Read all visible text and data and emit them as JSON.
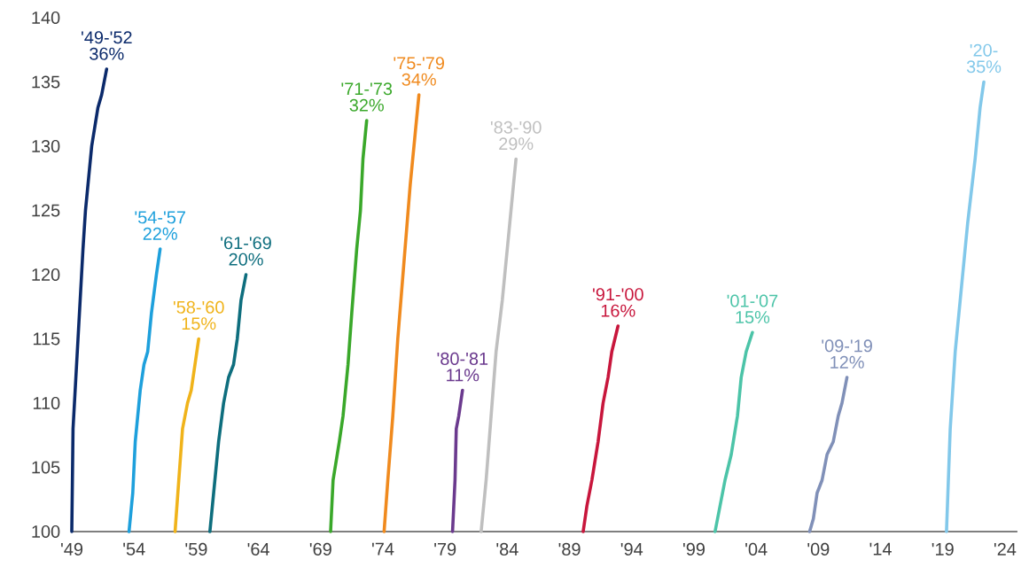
{
  "chart_data": {
    "type": "line",
    "xlim": [
      1949,
      2025
    ],
    "ylim": [
      100,
      140
    ],
    "xticks": [
      {
        "value": 1949,
        "label": "'49"
      },
      {
        "value": 1954,
        "label": "'54"
      },
      {
        "value": 1959,
        "label": "'59"
      },
      {
        "value": 1964,
        "label": "'64"
      },
      {
        "value": 1969,
        "label": "'69"
      },
      {
        "value": 1974,
        "label": "'74"
      },
      {
        "value": 1979,
        "label": "'79"
      },
      {
        "value": 1984,
        "label": "'84"
      },
      {
        "value": 1989,
        "label": "'89"
      },
      {
        "value": 1994,
        "label": "'94"
      },
      {
        "value": 1999,
        "label": "'99"
      },
      {
        "value": 2004,
        "label": "'04"
      },
      {
        "value": 2009,
        "label": "'09"
      },
      {
        "value": 2014,
        "label": "'14"
      },
      {
        "value": 2019,
        "label": "'19"
      },
      {
        "value": 2024,
        "label": "'24"
      }
    ],
    "yticks": [
      100,
      105,
      110,
      115,
      120,
      125,
      130,
      135,
      140
    ],
    "grid": false,
    "legend": false,
    "marker": "none",
    "line_style": "solid",
    "series": [
      {
        "name": "'49-'52",
        "color": "#0b2a6b",
        "x": [
          1949.0,
          1949.1,
          1949.5,
          1949.9,
          1950.1,
          1950.6,
          1951.1,
          1951.4,
          1951.8
        ],
        "values": [
          100,
          108,
          115,
          122,
          125,
          130,
          133,
          134,
          136
        ]
      },
      {
        "name": "'54-'57",
        "color": "#1ea0dc",
        "x": [
          1953.6,
          1953.9,
          1954.1,
          1954.5,
          1954.8,
          1955.1,
          1955.4,
          1955.8,
          1956.1
        ],
        "values": [
          100,
          103,
          107,
          111,
          113,
          114,
          117,
          120,
          122
        ]
      },
      {
        "name": "'58-'60",
        "color": "#f0b31a",
        "x": [
          1957.3,
          1957.6,
          1957.9,
          1958.3,
          1958.6,
          1958.9,
          1959.2
        ],
        "values": [
          100,
          104,
          108,
          110,
          111,
          113,
          115
        ]
      },
      {
        "name": "'61-'69",
        "color": "#0e6e7e",
        "x": [
          1960.1,
          1960.4,
          1960.8,
          1961.2,
          1961.6,
          1962.0,
          1962.3,
          1962.6,
          1963.0
        ],
        "values": [
          100,
          103,
          107,
          110,
          112,
          113,
          115,
          118,
          120
        ]
      },
      {
        "name": "'71-'73",
        "color": "#3aa82a",
        "x": [
          1969.8,
          1970.0,
          1970.5,
          1970.8,
          1971.2,
          1971.5,
          1971.9,
          1972.2,
          1972.4,
          1972.7
        ],
        "values": [
          100,
          104,
          107,
          109,
          113,
          117,
          122,
          125,
          129,
          132
        ]
      },
      {
        "name": "'75-'79",
        "color": "#f08a1e",
        "x": [
          1974.1,
          1974.4,
          1974.8,
          1975.2,
          1975.7,
          1976.2,
          1976.6,
          1976.9
        ],
        "values": [
          100,
          104,
          109,
          115,
          121,
          127,
          131,
          134
        ]
      },
      {
        "name": "'80-'81",
        "color": "#6b3a8e",
        "x": [
          1979.6,
          1979.8,
          1979.9,
          1980.1,
          1980.4
        ],
        "values": [
          100,
          104,
          108,
          109,
          111
        ]
      },
      {
        "name": "'83-'90",
        "color": "#bfbfbf",
        "x": [
          1981.9,
          1982.3,
          1982.7,
          1983.1,
          1983.6,
          1984.1,
          1984.7
        ],
        "values": [
          100,
          104,
          109,
          114,
          118,
          123,
          129
        ]
      },
      {
        "name": "'91-'00",
        "color": "#c8163c",
        "x": [
          1990.1,
          1990.4,
          1990.8,
          1991.3,
          1991.7,
          1992.1,
          1992.4,
          1992.9
        ],
        "values": [
          100,
          102,
          104,
          107,
          110,
          112,
          114,
          116
        ]
      },
      {
        "name": "'01-'07",
        "color": "#4cc4a8",
        "x": [
          2000.7,
          2001.1,
          2001.5,
          2002.0,
          2002.5,
          2002.8,
          2003.2,
          2003.7
        ],
        "values": [
          100,
          102,
          104,
          106,
          109,
          112,
          114,
          115.5
        ]
      },
      {
        "name": "'09-'19",
        "color": "#8090b8",
        "x": [
          2008.3,
          2008.6,
          2008.9,
          2009.3,
          2009.7,
          2010.2,
          2010.6,
          2010.9,
          2011.3
        ],
        "values": [
          100,
          101,
          103,
          104,
          106,
          107,
          109,
          110,
          112
        ]
      },
      {
        "name": "'20-",
        "color": "#82c8ea",
        "x": [
          2019.3,
          2019.6,
          2020.0,
          2020.5,
          2021.0,
          2021.6,
          2022.0,
          2022.3
        ],
        "values": [
          100,
          108,
          114,
          119,
          124,
          129,
          133,
          135
        ]
      }
    ],
    "annotations": [
      {
        "text": "36%",
        "x": 1951.8,
        "y": 136
      },
      {
        "text": "22%",
        "x": 1956.1,
        "y": 122
      },
      {
        "text": "15%",
        "x": 1959.2,
        "y": 115
      },
      {
        "text": "20%",
        "x": 1963.0,
        "y": 120
      },
      {
        "text": "32%",
        "x": 1972.7,
        "y": 132
      },
      {
        "text": "34%",
        "x": 1976.9,
        "y": 134
      },
      {
        "text": "11%",
        "x": 1980.4,
        "y": 111
      },
      {
        "text": "29%",
        "x": 1984.7,
        "y": 129
      },
      {
        "text": "16%",
        "x": 1992.9,
        "y": 116
      },
      {
        "text": "15%",
        "x": 2003.7,
        "y": 115.5
      },
      {
        "text": "12%",
        "x": 2011.3,
        "y": 112
      },
      {
        "text": "35%",
        "x": 2022.3,
        "y": 135
      }
    ]
  }
}
